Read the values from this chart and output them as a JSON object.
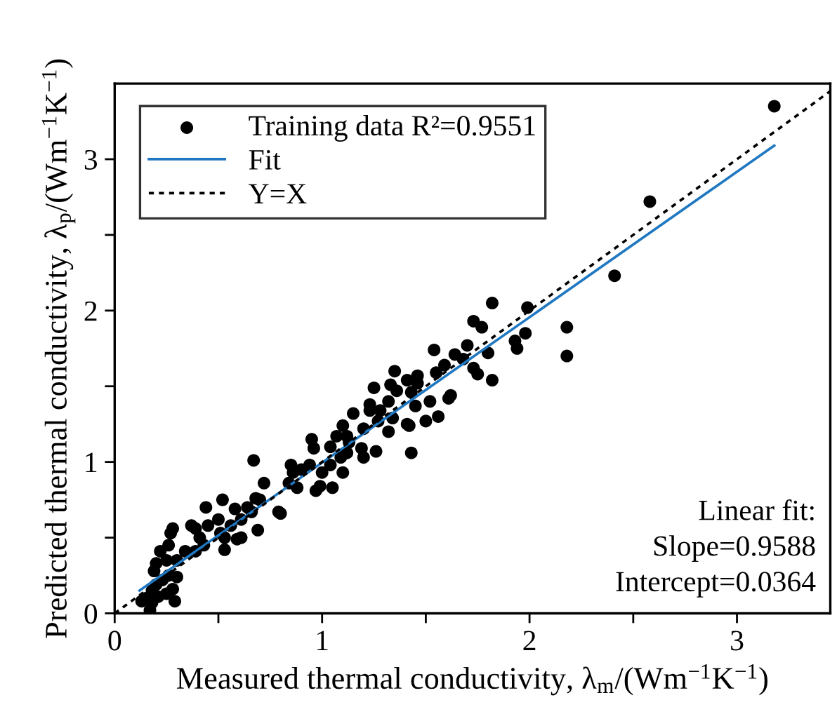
{
  "chart_data": {
    "type": "scatter",
    "xlabel": "Measured thermal conductivity, λ$_{m}$/(Wm$^{−1}$K$^{−1}$)",
    "ylabel": "Predicted thermal conductivity, λ$_{p}$/(Wm$^{−1}$K$^{−1}$)",
    "xlim": [
      0,
      3.45
    ],
    "ylim": [
      0,
      3.5
    ],
    "xticks": [
      0,
      {
        "value": 0.5,
        "label": null
      },
      1,
      {
        "value": 1.5,
        "label": null
      },
      2,
      {
        "value": 2.5,
        "label": null
      },
      3
    ],
    "yticks": [
      0,
      {
        "value": 0.5,
        "label": null
      },
      1,
      {
        "value": 1.5,
        "label": null
      },
      2,
      {
        "value": 2.5,
        "label": null
      },
      3
    ],
    "grid": false,
    "legend": "top left",
    "annotations": [
      "Linear fit:\nSlope=0.9588\nIntercept=0.0364"
    ],
    "series": [
      {
        "name": "Training data R²=0.9551",
        "marker": "circle",
        "color": "#000000",
        "x": [
          1.82,
          1.99,
          1.73,
          1.77,
          1.98,
          1.93,
          1.94,
          1.7,
          1.54,
          1.64,
          1.68,
          1.8,
          1.59,
          1.73,
          1.75,
          1.82,
          1.55,
          1.46,
          1.35,
          1.41,
          1.33,
          1.25,
          1.36,
          1.46,
          1.43,
          1.52,
          1.62,
          1.61,
          1.56,
          1.5,
          1.45,
          1.32,
          1.23,
          1.15,
          1.23,
          1.28,
          1.34,
          1.27,
          1.32,
          1.42,
          1.41,
          1.2,
          1.1,
          1.12,
          1.07,
          1.04,
          0.95,
          0.96,
          1.13,
          1.19,
          1.26,
          1.2,
          1.12,
          1.09,
          1.04,
          1.1,
          1.0,
          0.94,
          0.9,
          0.85,
          0.86,
          0.97,
          0.99,
          1.05,
          0.88,
          0.84,
          1.43,
          0.67,
          0.72,
          0.68,
          0.7,
          0.64,
          0.66,
          0.69,
          0.61,
          0.58,
          0.56,
          0.52,
          0.51,
          0.53,
          0.5,
          0.45,
          0.53,
          0.59,
          0.61,
          0.44,
          0.39,
          0.37,
          0.41,
          0.43,
          0.39,
          0.34,
          0.3,
          0.27,
          0.28,
          0.26,
          0.22,
          0.25,
          0.2,
          0.19,
          0.26,
          0.3,
          0.28,
          0.23,
          0.2,
          0.18,
          0.15,
          0.13,
          0.18,
          0.17,
          0.21,
          0.25,
          0.29,
          0.8,
          0.79,
          2.18,
          2.18,
          2.41,
          2.58,
          3.18
        ],
        "values": [
          2.05,
          2.02,
          1.93,
          1.89,
          1.85,
          1.8,
          1.75,
          1.77,
          1.74,
          1.71,
          1.68,
          1.72,
          1.64,
          1.62,
          1.58,
          1.54,
          1.59,
          1.57,
          1.6,
          1.54,
          1.51,
          1.49,
          1.47,
          1.52,
          1.46,
          1.4,
          1.44,
          1.42,
          1.3,
          1.27,
          1.37,
          1.4,
          1.38,
          1.32,
          1.34,
          1.34,
          1.29,
          1.27,
          1.2,
          1.24,
          1.25,
          1.22,
          1.24,
          1.17,
          1.17,
          1.1,
          1.15,
          1.09,
          1.13,
          1.09,
          1.07,
          1.03,
          1.06,
          1.03,
          0.98,
          0.93,
          0.93,
          0.98,
          0.95,
          0.98,
          0.93,
          0.81,
          0.84,
          0.83,
          0.83,
          0.86,
          1.06,
          1.01,
          0.86,
          0.76,
          0.75,
          0.7,
          0.67,
          0.55,
          0.62,
          0.69,
          0.58,
          0.75,
          0.53,
          0.5,
          0.62,
          0.58,
          0.42,
          0.49,
          0.5,
          0.7,
          0.56,
          0.58,
          0.5,
          0.45,
          0.41,
          0.41,
          0.35,
          0.53,
          0.56,
          0.45,
          0.41,
          0.35,
          0.33,
          0.28,
          0.25,
          0.24,
          0.16,
          0.22,
          0.19,
          0.15,
          0.1,
          0.08,
          0.07,
          0.02,
          0.11,
          0.13,
          0.08,
          0.66,
          0.67,
          1.89,
          1.7,
          2.23,
          2.72,
          3.35
        ]
      },
      {
        "name": "Fit",
        "type": "line",
        "color": "#1f78c1",
        "line_style": "solid",
        "x": [
          0.12,
          3.18
        ],
        "values": [
          0.15,
          3.09
        ]
      },
      {
        "name": "Y=X",
        "type": "line",
        "color": "#000000",
        "line_style": "dotted",
        "x": [
          0,
          3.45
        ],
        "values": [
          0,
          3.45
        ]
      }
    ]
  }
}
